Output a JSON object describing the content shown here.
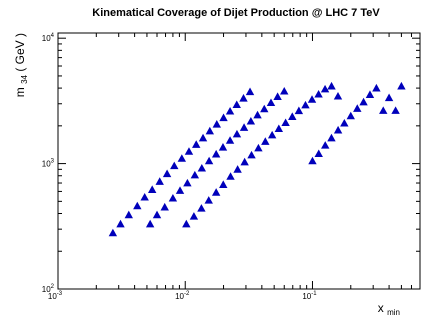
{
  "chart_data": {
    "type": "scatter",
    "title": "Kinematical Coverage of Dijet Production @ LHC 7 TeV",
    "xlabel": {
      "main": "x",
      "sub": "min"
    },
    "ylabel": {
      "pre": "m",
      "sub": "34",
      "post": " ( GeV )"
    },
    "xscale": "log",
    "yscale": "log",
    "xlim": [
      0.001,
      0.7
    ],
    "ylim": [
      100,
      11000
    ],
    "grid": false,
    "marker": "triangle-up",
    "marker_color": "#0000bb",
    "x_ticks": [
      {
        "value": 0.001,
        "base": "10",
        "exp": "-3"
      },
      {
        "value": 0.01,
        "base": "10",
        "exp": "-2"
      },
      {
        "value": 0.1,
        "base": "10",
        "exp": "-1"
      }
    ],
    "y_ticks": [
      {
        "value": 100,
        "base": "10",
        "exp": "2"
      },
      {
        "value": 1000,
        "base": "10",
        "exp": "3"
      },
      {
        "value": 10000,
        "base": "10",
        "exp": "4"
      }
    ],
    "series": [
      {
        "x": [
          0.0027,
          0.0031,
          0.0036,
          0.0042,
          0.0048,
          0.0055,
          0.0063,
          0.0072,
          0.0082,
          0.0094,
          0.0107,
          0.0122,
          0.0138,
          0.0156,
          0.0177,
          0.02,
          0.0225,
          0.0254,
          0.0287,
          0.0323
        ],
        "y": [
          280,
          330,
          390,
          460,
          540,
          620,
          720,
          830,
          960,
          1100,
          1250,
          1420,
          1600,
          1820,
          2060,
          2320,
          2620,
          2950,
          3320,
          3740
        ]
      },
      {
        "x": [
          0.0053,
          0.006,
          0.0069,
          0.008,
          0.0091,
          0.0104,
          0.0119,
          0.0135,
          0.0154,
          0.0175,
          0.0198,
          0.0225,
          0.0255,
          0.029,
          0.0328,
          0.037,
          0.0418,
          0.0472,
          0.0532,
          0.06
        ],
        "y": [
          330,
          390,
          450,
          530,
          610,
          700,
          810,
          920,
          1050,
          1190,
          1350,
          1530,
          1720,
          1940,
          2180,
          2440,
          2730,
          3060,
          3420,
          3780
        ]
      },
      {
        "x": [
          0.0102,
          0.0117,
          0.0134,
          0.0153,
          0.0175,
          0.0199,
          0.0227,
          0.0258,
          0.0293,
          0.0332,
          0.0376,
          0.0426,
          0.0482,
          0.0544,
          0.0615,
          0.0694,
          0.0782,
          0.0881,
          0.0992,
          0.1117,
          0.1256,
          0.1412,
          0.1587
        ],
        "y": [
          330,
          380,
          440,
          510,
          590,
          680,
          790,
          900,
          1030,
          1170,
          1330,
          1500,
          1690,
          1900,
          2120,
          2370,
          2640,
          2930,
          3250,
          3580,
          3930,
          4150,
          3450
        ]
      },
      {
        "x": [
          0.1,
          0.112,
          0.126,
          0.141,
          0.159,
          0.178,
          0.2,
          0.225,
          0.252,
          0.283,
          0.318,
          0.36,
          0.4,
          0.45,
          0.5
        ],
        "y": [
          1050,
          1200,
          1400,
          1600,
          1850,
          2100,
          2400,
          2750,
          3100,
          3550,
          4000,
          2650,
          3350,
          2650,
          4150
        ]
      }
    ]
  }
}
